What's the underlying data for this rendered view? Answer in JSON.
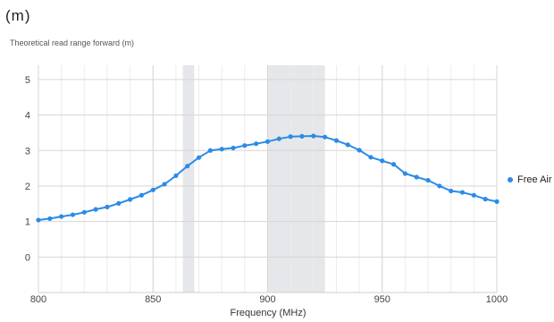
{
  "unit_label": "(m)",
  "colors": {
    "series": "#2b8be6",
    "band": "#e6e7ea",
    "grid_major": "#d6d6d6",
    "grid_minor": "#ececec"
  },
  "chart_data": {
    "type": "line",
    "title": "Theoretical read range forward (m)",
    "xlabel": "Frequency (MHz)",
    "ylabel": "",
    "xlim": [
      800,
      1000
    ],
    "ylim": [
      -1,
      5.4
    ],
    "x_major_ticks": [
      800,
      850,
      900,
      950,
      1000
    ],
    "y_ticks": [
      0,
      1,
      2,
      3,
      4,
      5
    ],
    "grid": true,
    "legend_position": "right",
    "highlight_bands": [
      [
        863,
        868
      ],
      [
        900,
        925
      ]
    ],
    "series": [
      {
        "name": "Free Air",
        "color": "#2b8be6",
        "x": [
          800,
          805,
          810,
          815,
          820,
          825,
          830,
          835,
          840,
          845,
          850,
          855,
          860,
          865,
          870,
          875,
          880,
          885,
          890,
          895,
          900,
          905,
          910,
          915,
          920,
          925,
          930,
          935,
          940,
          945,
          950,
          955,
          960,
          965,
          970,
          975,
          980,
          985,
          990,
          995,
          1000
        ],
        "y": [
          1.04,
          1.08,
          1.14,
          1.19,
          1.26,
          1.34,
          1.41,
          1.51,
          1.62,
          1.74,
          1.89,
          2.05,
          2.29,
          2.56,
          2.8,
          3.0,
          3.04,
          3.07,
          3.14,
          3.19,
          3.25,
          3.33,
          3.39,
          3.4,
          3.41,
          3.38,
          3.28,
          3.16,
          3.01,
          2.81,
          2.71,
          2.61,
          2.35,
          2.25,
          2.16,
          2.0,
          1.86,
          1.82,
          1.74,
          1.63,
          1.56
        ]
      }
    ]
  }
}
